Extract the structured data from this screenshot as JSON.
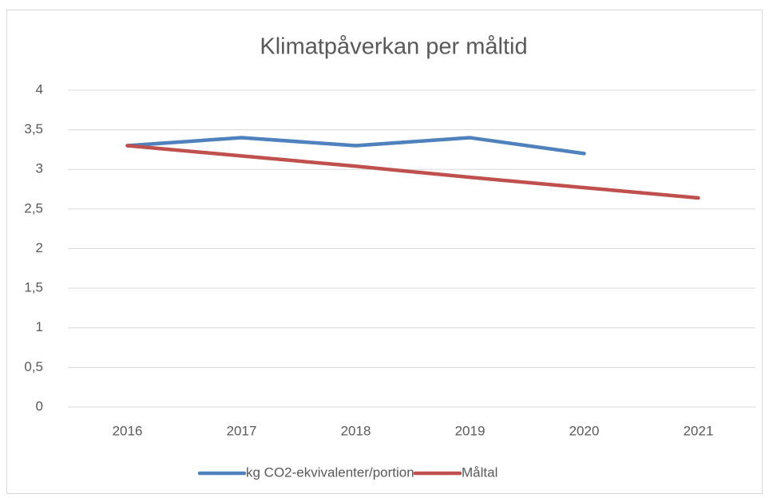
{
  "chart_data": {
    "type": "line",
    "title": "Klimatpåverkan per måltid",
    "categories": [
      "2016",
      "2017",
      "2018",
      "2019",
      "2020",
      "2021"
    ],
    "series": [
      {
        "name": "kg CO2-ekvivalenter/portion",
        "color": "#4f81bd",
        "values": [
          3.3,
          3.4,
          3.3,
          3.4,
          3.2,
          null
        ]
      },
      {
        "name": "Måltal",
        "color": "#c0504d",
        "values": [
          3.3,
          3.17,
          3.04,
          2.9,
          2.77,
          2.64
        ]
      }
    ],
    "ylim": [
      0,
      4
    ],
    "yticks": [
      0,
      {
        "value": 0.5,
        "label": "0,5"
      },
      1,
      {
        "value": 1.5,
        "label": "1,5"
      },
      2,
      {
        "value": 2.5,
        "label": "2,5"
      },
      3,
      {
        "value": 3.5,
        "label": "3,5"
      },
      4
    ],
    "grid": true,
    "legend": "bottom"
  }
}
